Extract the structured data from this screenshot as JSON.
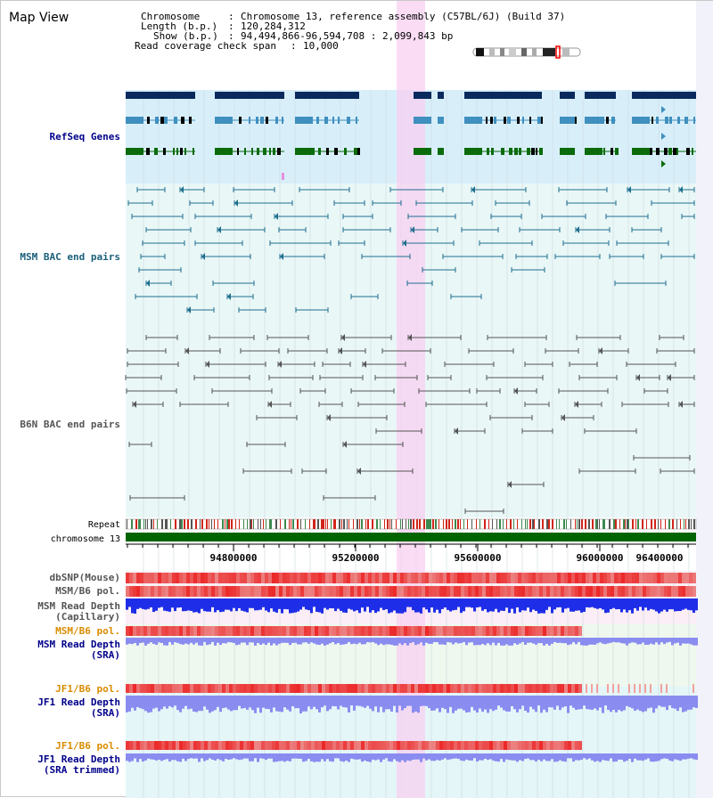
{
  "app": {
    "title": "Map View"
  },
  "header": {
    "chromosome_label": "Chromosome",
    "chromosome_value": "Chromosome 13, reference assembly (C57BL/6J) (Build 37)",
    "length_label": "Length (b.p.)",
    "length_value": "120,284,312",
    "show_label": "Show (b.p.)",
    "show_value": "94,494,866-96,594,708 : 2,099,843 bp",
    "span_label": "Read coverage check span",
    "span_value": "10,000"
  },
  "tracks": {
    "refseq_label": "RefSeq Genes",
    "msm_bac_label": "MSM BAC end pairs",
    "b6n_bac_label": "B6N BAC end pairs",
    "repeat_label": "Repeat",
    "chromosome_label": "chromosome 13",
    "dbsnp_label": "dbSNP(Mouse)",
    "msm_b6_pol_label": "MSM/B6 pol.",
    "msm_depth_cap_label_1": "MSM Read Depth",
    "msm_depth_cap_label_2": "(Capillary)",
    "msm_b6_pol_sra_label": "MSM/B6 pol.",
    "msm_depth_sra_label_1": "MSM Read Depth",
    "msm_depth_sra_label_2": "(SRA)",
    "jf1_pol_label": "JF1/B6 pol.",
    "jf1_depth_sra_label_1": "JF1 Read Depth",
    "jf1_depth_sra_label_2": "(SRA)",
    "jf1_pol_trim_label": "JF1/B6 pol.",
    "jf1_depth_trim_label_1": "JF1 Read Depth",
    "jf1_depth_trim_label_2": "(SRA trimmed)"
  },
  "axis": {
    "ticks": [
      "94800000",
      "95200000",
      "95600000",
      "96000000",
      "96400000"
    ]
  },
  "colors": {
    "gene_dark": "#0a2a5e",
    "gene_mid": "#3f8fbf",
    "gene_green": "#0b6b0b",
    "refseq_bg": "#d8effa",
    "bac_bg": "#e4f6f8",
    "msm_pair": "#1f6f8f",
    "b6n_pair": "#555555",
    "highlight": "#f8d4f4",
    "label_blue": "#00008b",
    "label_teal": "#1a5f7a",
    "label_orange": "#d98c00",
    "depth_blue": "#1e2ee8",
    "depth_sra": "#8a8cf0"
  }
}
